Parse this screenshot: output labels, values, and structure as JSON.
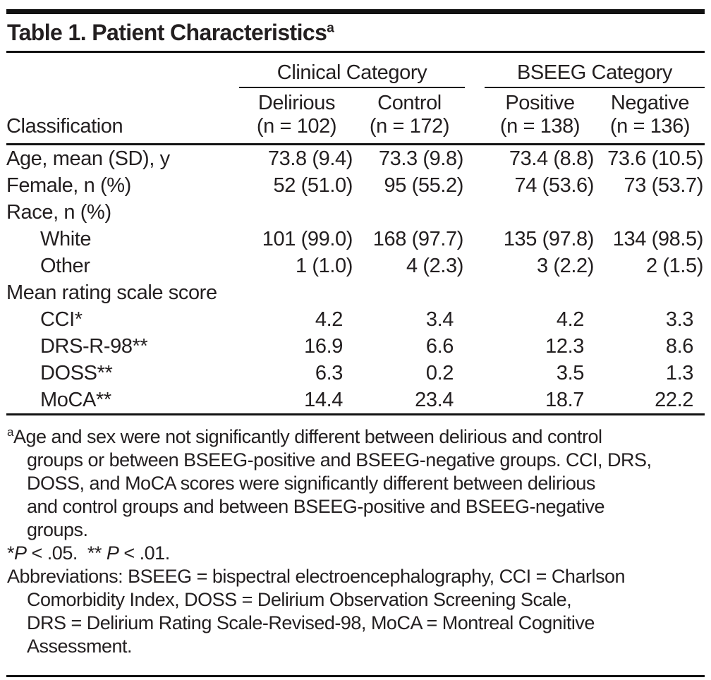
{
  "title": {
    "text": "Table 1. Patient Characteristics",
    "superscript": "a"
  },
  "table": {
    "row_header": "Classification",
    "group_headers": [
      "Clinical Category",
      "BSEEG Category"
    ],
    "columns": [
      {
        "line1": "Delirious",
        "line2": "(n = 102)"
      },
      {
        "line1": "Control",
        "line2": "(n = 172)"
      },
      {
        "line1": "Positive",
        "line2": "(n = 138)"
      },
      {
        "line1": "Negative",
        "line2": "(n = 136)"
      }
    ],
    "rows": [
      {
        "label": "Age, mean (SD), y",
        "values": [
          "73.8 (9.4)",
          "73.3 (9.8)",
          "73.4 (8.8)",
          "73.6 (10.5)"
        ]
      },
      {
        "label": "Female, n (%)",
        "values": [
          "52 (51.0)",
          "95 (55.2)",
          "74 (53.6)",
          "73 (53.7)"
        ]
      },
      {
        "label": "Race, n (%)",
        "values": [
          "",
          "",
          "",
          ""
        ]
      },
      {
        "label": "White",
        "values": [
          "101 (99.0)",
          "168 (97.7)",
          "135 (97.8)",
          "134 (98.5)"
        ]
      },
      {
        "label": "Other",
        "values": [
          "1 (1.0)",
          "4 (2.3)",
          "3 (2.2)",
          "2 (1.5)"
        ]
      },
      {
        "label": "Mean rating scale score",
        "values": [
          "",
          "",
          "",
          ""
        ]
      },
      {
        "label": "CCI*",
        "values": [
          "4.2",
          "3.4",
          "4.2",
          "3.3"
        ]
      },
      {
        "label": "DRS-R-98**",
        "values": [
          "16.9",
          "6.6",
          "12.3",
          "8.6"
        ]
      },
      {
        "label": "DOSS**",
        "values": [
          "6.3",
          "0.2",
          "3.5",
          "1.3"
        ]
      },
      {
        "label": "MoCA**",
        "values": [
          "14.4",
          "23.4",
          "18.7",
          "22.2"
        ]
      }
    ]
  },
  "footnotes": {
    "a_marker": "a",
    "a_lines": [
      "Age and sex were not significantly different between delirious and control",
      "groups or between BSEEG-positive and BSEEG-negative groups. CCI, DRS,",
      "DOSS, and MoCA scores were significantly different between delirious",
      "and control groups and between BSEEG-positive and BSEEG-negative",
      "groups."
    ],
    "sig": {
      "star1": "*",
      "p1": "P",
      "rel1": " < .05.  ",
      "star2": "** ",
      "p2": "P",
      "rel2": " < .01."
    },
    "abbr_lines": [
      "Abbreviations: BSEEG = bispectral electroencephalography, CCI = Charlson",
      "Comorbidity Index, DOSS = Delirium Observation Screening Scale,",
      "DRS = Delirium Rating Scale-Revised-98, MoCA = Montreal Cognitive",
      "Assessment."
    ]
  },
  "colors": {
    "text": "#231f20",
    "rule": "#121212",
    "background": "#ffffff"
  }
}
